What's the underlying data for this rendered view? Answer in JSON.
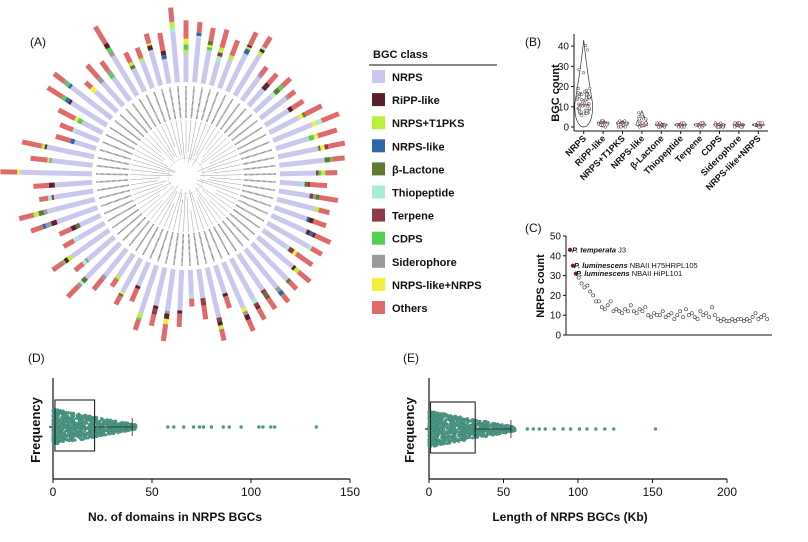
{
  "panels": {
    "a": "(A)",
    "b": "(B)",
    "c": "(C)",
    "d": "(D)",
    "e": "(E)"
  },
  "colors": {
    "NRPS": "#c9c7ee",
    "RiPP-like": "#5b1f2d",
    "NRPS+T1PKS": "#b9f03e",
    "NRPS-like": "#2f67a8",
    "beta-Lactone": "#5d7a32",
    "Thiopeptide": "#a8ecd8",
    "Terpene": "#8e3b45",
    "CDPS": "#52d150",
    "Siderophore": "#9a9a9a",
    "NRPS-like+NRPS": "#f2ef3a",
    "Others": "#e0696a",
    "teal": "#4f9a88"
  },
  "legend": {
    "title": "BGC class",
    "items": [
      {
        "label": "NRPS",
        "key": "NRPS"
      },
      {
        "label": "RiPP-like",
        "key": "RiPP-like"
      },
      {
        "label": "NRPS+T1PKS",
        "key": "NRPS+T1PKS"
      },
      {
        "label": "NRPS-like",
        "key": "NRPS-like"
      },
      {
        "label": "β-Lactone",
        "key": "beta-Lactone"
      },
      {
        "label": "Thiopeptide",
        "key": "Thiopeptide"
      },
      {
        "label": "Terpene",
        "key": "Terpene"
      },
      {
        "label": "CDPS",
        "key": "CDPS"
      },
      {
        "label": "Siderophore",
        "key": "Siderophore"
      },
      {
        "label": "NRPS-like+NRPS",
        "key": "NRPS-like+NRPS"
      },
      {
        "label": "Others",
        "key": "Others"
      }
    ]
  },
  "chart_data": [
    {
      "id": "A",
      "type": "circular-stacked-bar",
      "leaf_count": 69,
      "legend_title": "BGC class"
    },
    {
      "id": "B",
      "type": "scatter",
      "subtype": "violin-dot",
      "ylabel": "BGC count",
      "ylim": [
        0,
        45
      ],
      "yticks": [
        0,
        10,
        20,
        30,
        40
      ],
      "categories": [
        "NRPS",
        "RiPP-like",
        "NRPS+T1PKS",
        "NRPS-like",
        "β-Lactone",
        "Thiopeptide",
        "Terpene",
        "CDPS",
        "Siderophore",
        "NRPS-like+NRPS"
      ],
      "max_values": [
        43,
        3,
        3,
        8,
        2,
        2,
        2,
        2,
        2,
        2
      ],
      "median_values": [
        11,
        2,
        2,
        1,
        1,
        1,
        1,
        1,
        1,
        1
      ]
    },
    {
      "id": "C",
      "type": "scatter",
      "ylabel": "NRPS count",
      "ylim": [
        0,
        50
      ],
      "yticks": [
        0,
        10,
        20,
        30,
        40,
        50
      ],
      "annotations": [
        {
          "species": "P. temperata",
          "strain": "J3",
          "value": 43
        },
        {
          "species": "P. luminescens",
          "strain": "NBAII H75HRPL105",
          "value": 35
        },
        {
          "species": "P. luminescens",
          "strain": "NBAII HiPL101",
          "value": 31
        }
      ],
      "values": [
        43,
        35,
        31,
        29,
        26,
        24,
        25,
        22,
        20,
        17,
        17,
        14,
        13,
        15,
        17,
        12,
        13,
        12,
        11,
        13,
        12,
        15,
        12,
        11,
        13,
        12,
        14,
        10,
        9,
        11,
        10,
        10,
        12,
        9,
        10,
        11,
        8,
        10,
        12,
        9,
        13,
        10,
        11,
        9,
        8,
        12,
        10,
        11,
        9,
        14,
        10,
        8,
        7,
        8,
        7,
        7,
        8,
        7,
        8,
        8,
        7,
        8,
        7,
        9,
        11,
        8,
        9,
        10,
        8
      ]
    },
    {
      "id": "D",
      "type": "scatter",
      "subtype": "beeswarm-box",
      "xlabel": "No. of domains in NRPS BGCs",
      "ylabel": "Frequency",
      "xlim": [
        0,
        150
      ],
      "xticks": [
        0,
        50,
        100,
        150
      ],
      "box": {
        "q1": 1,
        "q3": 21,
        "whisker_high": 40
      },
      "outliers": [
        58,
        61,
        66,
        71,
        74,
        76,
        80,
        86,
        89,
        95,
        104,
        106,
        110,
        112,
        133
      ]
    },
    {
      "id": "E",
      "type": "scatter",
      "subtype": "beeswarm-box",
      "xlabel": "Length of NRPS BGCs (Kb)",
      "ylabel": "Frequency",
      "xlim": [
        0,
        200
      ],
      "xticks": [
        0,
        50,
        100,
        150,
        200
      ],
      "box": {
        "q1": 1,
        "q3": 31,
        "whisker_high": 55
      },
      "outliers": [
        66,
        70,
        74,
        78,
        84,
        90,
        95,
        101,
        106,
        112,
        118,
        124,
        152
      ]
    }
  ]
}
